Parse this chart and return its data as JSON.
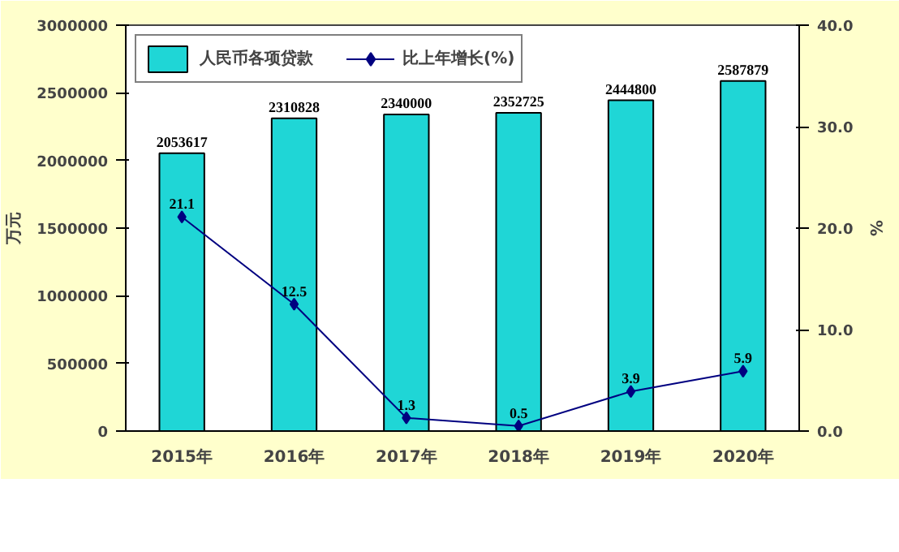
{
  "chart_data": {
    "type": "bar",
    "categories": [
      "2015年",
      "2016年",
      "2017年",
      "2018年",
      "2019年",
      "2020年"
    ],
    "ylabel": "万元",
    "y2label": "%",
    "series": [
      {
        "name": "人民币各项贷款",
        "color": "#1fd6d6",
        "values": [
          2053617,
          2310828,
          2340000,
          2352725,
          2444800,
          2587879
        ]
      },
      {
        "name": "比上年增长(%)",
        "type": "line",
        "axis": "y2",
        "color": "#000080",
        "values": [
          21.1,
          12.5,
          1.3,
          0.5,
          3.9,
          5.9
        ]
      }
    ],
    "ylim": [
      0,
      3000000
    ],
    "yticks": [
      0,
      500000,
      1000000,
      1500000,
      2000000,
      2500000,
      3000000
    ],
    "y2lim": [
      0,
      40
    ],
    "y2ticks": [
      {
        "value": 0,
        "label": "0.0"
      },
      {
        "value": 10,
        "label": "10.0"
      },
      {
        "value": 20,
        "label": "20.0"
      },
      {
        "value": 30,
        "label": "30.0"
      },
      {
        "value": 40,
        "label": "40.0"
      }
    ],
    "data_labels": true,
    "legend": "top",
    "grid": false,
    "marker": "diamond"
  }
}
